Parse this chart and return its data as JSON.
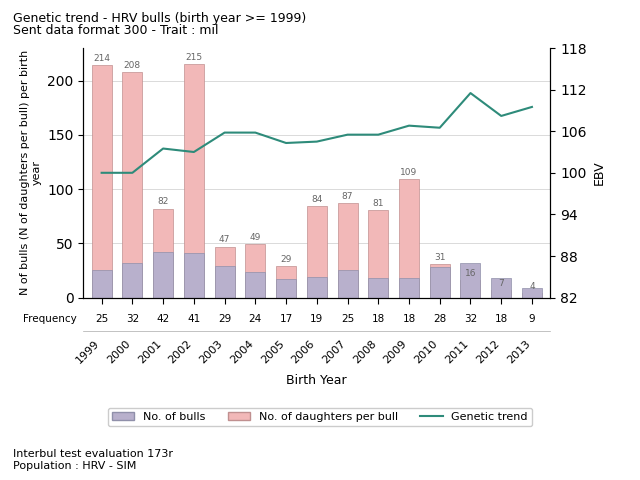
{
  "years": [
    1999,
    2000,
    2001,
    2002,
    2003,
    2004,
    2005,
    2006,
    2007,
    2008,
    2009,
    2010,
    2011,
    2012,
    2013
  ],
  "n_bulls": [
    25,
    32,
    42,
    41,
    29,
    24,
    17,
    19,
    25,
    18,
    18,
    28,
    32,
    18,
    9
  ],
  "daughters_per_bull": [
    214,
    208,
    82,
    215,
    47,
    49,
    29,
    84,
    87,
    81,
    109,
    31,
    16,
    7,
    4
  ],
  "genetic_trend": [
    100.0,
    100.0,
    103.5,
    103.0,
    105.8,
    105.8,
    104.3,
    104.5,
    105.5,
    105.5,
    106.8,
    106.5,
    111.5,
    108.2,
    109.5
  ],
  "frequency": [
    25,
    32,
    42,
    41,
    29,
    24,
    17,
    19,
    25,
    18,
    18,
    28,
    32,
    18,
    9
  ],
  "bar_color_daughters": "#f2b8b8",
  "bar_color_bulls": "#b8b0cc",
  "bar_edge_color_daughters": "#c09090",
  "bar_edge_color_bulls": "#9090aa",
  "line_color": "#2e8b7a",
  "title1": "Genetic trend - HRV bulls (birth year >= 1999)",
  "title2": "Sent data format 300 - Trait : mil",
  "xlabel": "Birth Year",
  "ylabel_left": "N of bulls (N of daughters per bull) per birth\nyear",
  "ylabel_right": "EBV",
  "ylim_left": [
    0,
    230
  ],
  "ylim_right": [
    82,
    118
  ],
  "yticks_left": [
    0,
    50,
    100,
    150,
    200
  ],
  "yticks_right": [
    82,
    88,
    94,
    100,
    106,
    112,
    118
  ],
  "footer1": "Interbul test evaluation 173r",
  "footer2": "Population : HRV - SIM",
  "legend_bulls_label": "No. of bulls",
  "legend_daughters_label": "No. of daughters per bull",
  "legend_trend_label": "Genetic trend"
}
